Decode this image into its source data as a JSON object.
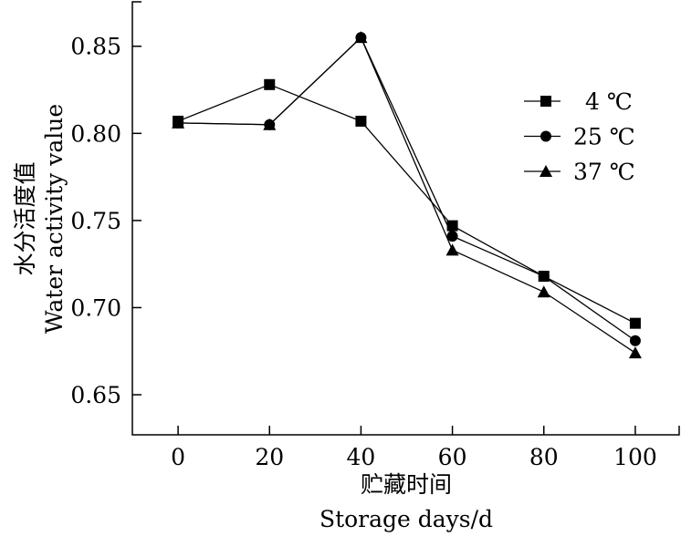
{
  "chart_data": {
    "type": "line",
    "title": "",
    "xlabel": [
      "贮藏时间",
      "Storage days/d"
    ],
    "ylabel": [
      "水分活度值",
      "Water activity value"
    ],
    "x": [
      0,
      20,
      40,
      60,
      80,
      100
    ],
    "xticks": [
      "0",
      "20",
      "40",
      "60",
      "80",
      "100"
    ],
    "yticks": [
      "0.65",
      "0.70",
      "0.75",
      "0.80",
      "0.85"
    ],
    "ytick_values": [
      0.65,
      0.7,
      0.75,
      0.8,
      0.85
    ],
    "xlim": [
      -10,
      109.6
    ],
    "ylim": [
      0.627,
      0.8755
    ],
    "grid": false,
    "legend_position": "top-right",
    "series": [
      {
        "name": "4 ℃",
        "marker": "square",
        "values": [
          0.807,
          0.828,
          0.807,
          0.747,
          0.718,
          0.691
        ]
      },
      {
        "name": "25 ℃",
        "marker": "circle",
        "values": [
          0.806,
          0.805,
          0.855,
          0.741,
          0.718,
          0.681
        ]
      },
      {
        "name": "37 ℃",
        "marker": "triangle",
        "values": [
          0.806,
          0.805,
          0.855,
          0.733,
          0.709,
          0.674
        ]
      }
    ]
  }
}
